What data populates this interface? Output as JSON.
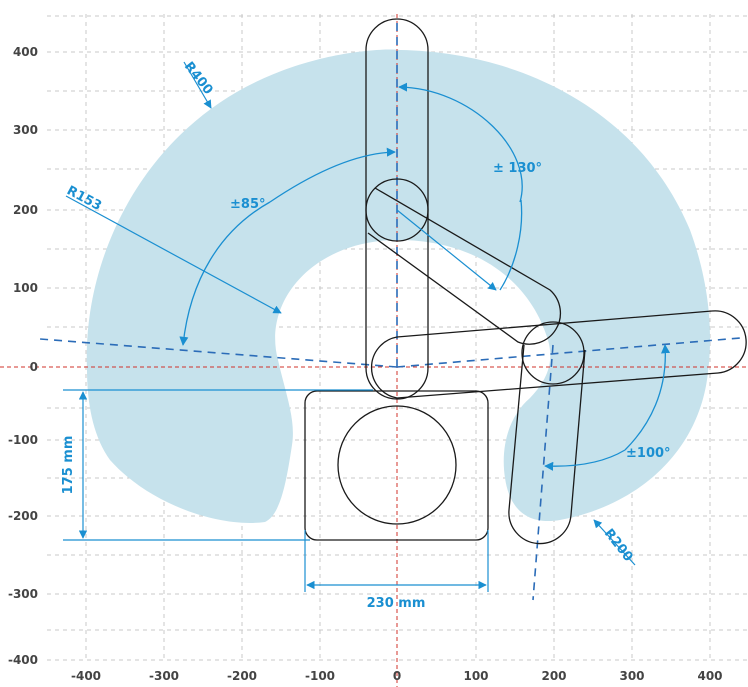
{
  "axes": {
    "x_ticks": [
      "-400",
      "-300",
      "-200",
      "-100",
      "0",
      "100",
      "200",
      "300",
      "400"
    ],
    "y_ticks": [
      "400",
      "300",
      "200",
      "100",
      "0",
      "-100",
      "-200",
      "-300",
      "-400"
    ]
  },
  "labels": {
    "radius_outer": "R400",
    "radius_inner": "R153",
    "radius_small": "R200",
    "angle_top": "± 130°",
    "angle_left": "±85°",
    "angle_right": "±100°",
    "height_dim": "175 mm",
    "width_dim": "230 mm"
  },
  "colors": {
    "workspace_fill": "#c6e2ec",
    "dimension_line": "#1a8fd1",
    "axis_dashed": "#2b6cb8",
    "origin_line": "#d0332b",
    "grid": "#c9c9c9",
    "outline": "#1a1a1a"
  }
}
